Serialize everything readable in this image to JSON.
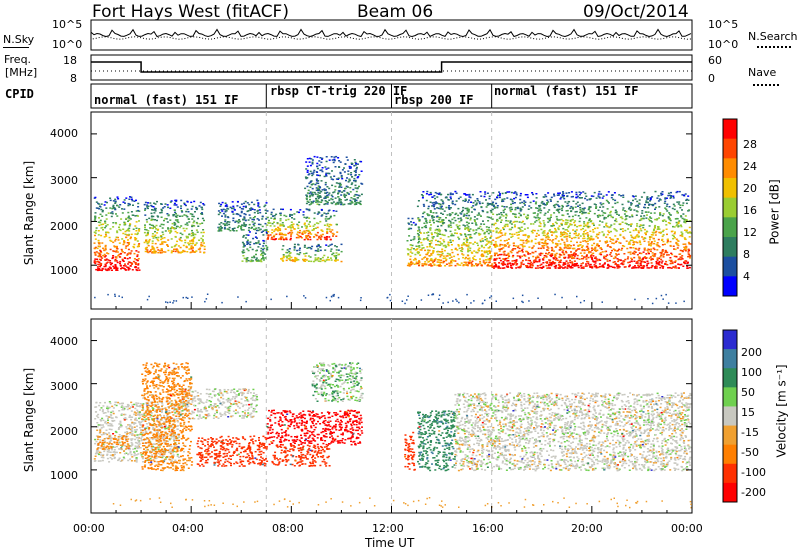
{
  "header": {
    "title_left": "Fort Hays West (fitACF)",
    "title_mid": "Beam 06",
    "title_right": "09/Oct/2014"
  },
  "top_panels": {
    "nsky_label": "N.Sky",
    "nsearch_label": "N.Search",
    "nsky_ticks": [
      "10^5",
      "10^0"
    ],
    "nsearch_ticks": [
      "10^5",
      "10^0"
    ],
    "freq_label_1": "Freq.",
    "freq_label_2": "[MHz]",
    "freq_ticks": [
      "18",
      "8"
    ],
    "nave_label": "Nave",
    "nave_ticks": [
      "60",
      "0"
    ],
    "cpid_label": "CPID",
    "cpid_segments": [
      {
        "label": "normal (fast) 151 IF",
        "start_hour": 0.0,
        "end_hour": 7.0
      },
      {
        "label": "rbsp CT-trig 220 IF",
        "start_hour": 7.0,
        "end_hour": 12.0
      },
      {
        "label": "rbsp 200 IF",
        "start_hour": 12.0,
        "end_hour": 16.0
      },
      {
        "label": "normal (fast) 151 IF",
        "start_hour": 16.0,
        "end_hour": 24.0
      }
    ]
  },
  "colors": {
    "power": [
      "#0000ff",
      "#1c4fa0",
      "#2e7d5f",
      "#4aa34a",
      "#9acd32",
      "#f0c000",
      "#ff8c00",
      "#ff4500",
      "#ff0000"
    ],
    "velocity": [
      "#2b2bd0",
      "#3e7fa0",
      "#2e8b57",
      "#6fd04f",
      "#c8c8c0",
      "#f0a030",
      "#ff7f00",
      "#ff3000",
      "#ff0000"
    ],
    "dashed_line": "#c0c0c0"
  },
  "chart_data": [
    {
      "type": "heatmap",
      "title": "",
      "xlabel": "Time UT",
      "ylabel": "Slant Range [km]",
      "xlim_hours": [
        0,
        24
      ],
      "ylim_km": [
        0,
        4500
      ],
      "y_ticks": [
        "1000",
        "2000",
        "3000",
        "4000"
      ],
      "x_ticks": [
        "00:00",
        "04:00",
        "08:00",
        "12:00",
        "16:00",
        "20:00",
        "00:00"
      ],
      "colorbar": {
        "label": "Power [dB]",
        "ticks": [
          "4",
          "8",
          "12",
          "16",
          "20",
          "24",
          "28"
        ],
        "range": [
          0,
          30
        ]
      },
      "echo_regions": [
        {
          "t0": 0.1,
          "t1": 1.9,
          "r0": 900,
          "r1": 2600,
          "level": 0.9
        },
        {
          "t0": 2.1,
          "t1": 4.5,
          "r0": 1300,
          "r1": 2500,
          "level": 0.6
        },
        {
          "t0": 5.0,
          "t1": 7.0,
          "r0": 1800,
          "r1": 2500,
          "level": 0.2
        },
        {
          "t0": 6.0,
          "t1": 7.0,
          "r0": 1100,
          "r1": 1800,
          "level": 0.3
        },
        {
          "t0": 7.0,
          "t1": 9.8,
          "r0": 1600,
          "r1": 2300,
          "level": 0.75
        },
        {
          "t0": 8.5,
          "t1": 10.8,
          "r0": 2400,
          "r1": 3500,
          "level": 0.2
        },
        {
          "t0": 7.5,
          "t1": 10.0,
          "r0": 1100,
          "r1": 1500,
          "level": 0.5
        },
        {
          "t0": 12.6,
          "t1": 13.1,
          "r0": 1000,
          "r1": 2100,
          "level": 0.6
        },
        {
          "t0": 13.0,
          "t1": 16.0,
          "r0": 1000,
          "r1": 2700,
          "level": 0.6
        },
        {
          "t0": 16.0,
          "t1": 23.9,
          "r0": 950,
          "r1": 2700,
          "level": 0.85
        }
      ]
    },
    {
      "type": "heatmap",
      "title": "",
      "xlabel": "Time UT",
      "ylabel": "Slant Range [km]",
      "xlim_hours": [
        0,
        24
      ],
      "ylim_km": [
        0,
        4500
      ],
      "y_ticks": [
        "1000",
        "2000",
        "3000",
        "4000"
      ],
      "x_ticks": [
        "00:00",
        "04:00",
        "08:00",
        "12:00",
        "16:00",
        "20:00",
        "00:00"
      ],
      "colorbar": {
        "label": "Velocity [m s⁻¹]",
        "ticks": [
          "200",
          "100",
          "50",
          "15",
          "-15",
          "-50",
          "-100",
          "-200"
        ],
        "range": [
          -250,
          250
        ]
      },
      "echo_regions": [
        {
          "t0": 0.1,
          "t1": 3.5,
          "r0": 1200,
          "r1": 2600,
          "velocity": 0
        },
        {
          "t0": 3.5,
          "t1": 6.6,
          "r0": 2200,
          "r1": 2900,
          "velocity": 0
        },
        {
          "t0": 0.2,
          "t1": 1.5,
          "r0": 1500,
          "r1": 1800,
          "velocity": -60
        },
        {
          "t0": 2.0,
          "t1": 4.0,
          "r0": 1000,
          "r1": 3500,
          "velocity": -60
        },
        {
          "t0": 4.2,
          "t1": 7.0,
          "r0": 1100,
          "r1": 1800,
          "velocity": -120
        },
        {
          "t0": 7.0,
          "t1": 10.8,
          "r0": 1600,
          "r1": 2400,
          "velocity": -220
        },
        {
          "t0": 7.2,
          "t1": 9.5,
          "r0": 1100,
          "r1": 1600,
          "velocity": -120
        },
        {
          "t0": 8.8,
          "t1": 10.8,
          "r0": 2600,
          "r1": 3500,
          "velocity": 20
        },
        {
          "t0": 12.5,
          "t1": 12.9,
          "r0": 1000,
          "r1": 1900,
          "velocity": -150
        },
        {
          "t0": 13.0,
          "t1": 14.5,
          "r0": 1000,
          "r1": 2400,
          "velocity": 60
        },
        {
          "t0": 14.5,
          "t1": 23.9,
          "r0": 1000,
          "r1": 2800,
          "velocity": 0
        }
      ]
    }
  ]
}
